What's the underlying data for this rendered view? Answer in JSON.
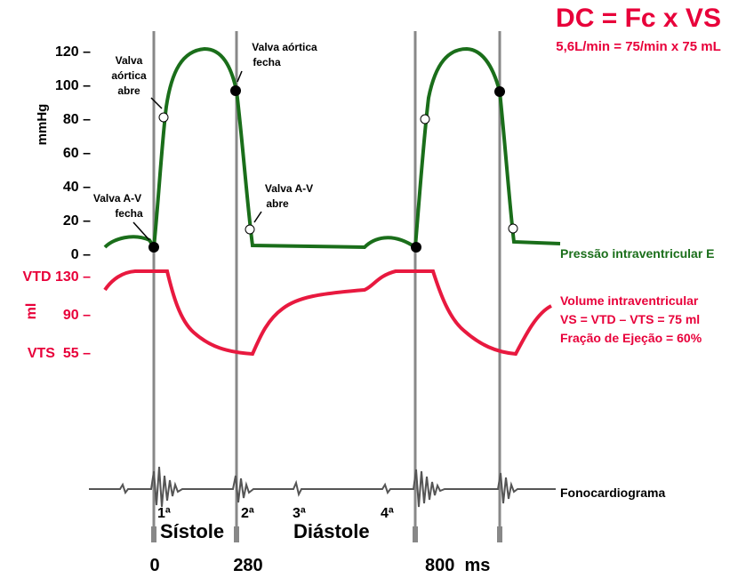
{
  "header": {
    "title": "DC = Fc x VS",
    "subtitle": "5,6L/min = 75/min x 75 mL"
  },
  "pressure_axis": {
    "label": "mmHg",
    "ticks": [
      "120 –",
      "100 –",
      "80 –",
      "60 –",
      "40 –",
      "20 –",
      "0 –"
    ]
  },
  "volume_axis": {
    "label": "ml",
    "ticks": [
      "VTD 130 –",
      "90 –",
      "VTS  55 –"
    ]
  },
  "annotations": {
    "aortic_opens": [
      "Valva",
      "aórtica",
      "abre"
    ],
    "aortic_closes": [
      "Valva aórtica",
      "fecha"
    ],
    "av_closes": [
      "Valva A-V",
      "fecha"
    ],
    "av_opens": [
      "Valva A-V",
      "abre"
    ]
  },
  "pressure_label": "Pressão intraventricular E",
  "volume_label": [
    "Volume intraventricular",
    "VS = VTD – VTS = 75 ml",
    "Fração de Ejeção = 60%"
  ],
  "phono_label": "Fonocardiograma",
  "sounds": [
    "1ª",
    "2ª",
    "3ª",
    "4ª"
  ],
  "phases": [
    "Sístole",
    "Diástole"
  ],
  "time_labels": [
    "0",
    "280",
    "800  ms"
  ]
}
